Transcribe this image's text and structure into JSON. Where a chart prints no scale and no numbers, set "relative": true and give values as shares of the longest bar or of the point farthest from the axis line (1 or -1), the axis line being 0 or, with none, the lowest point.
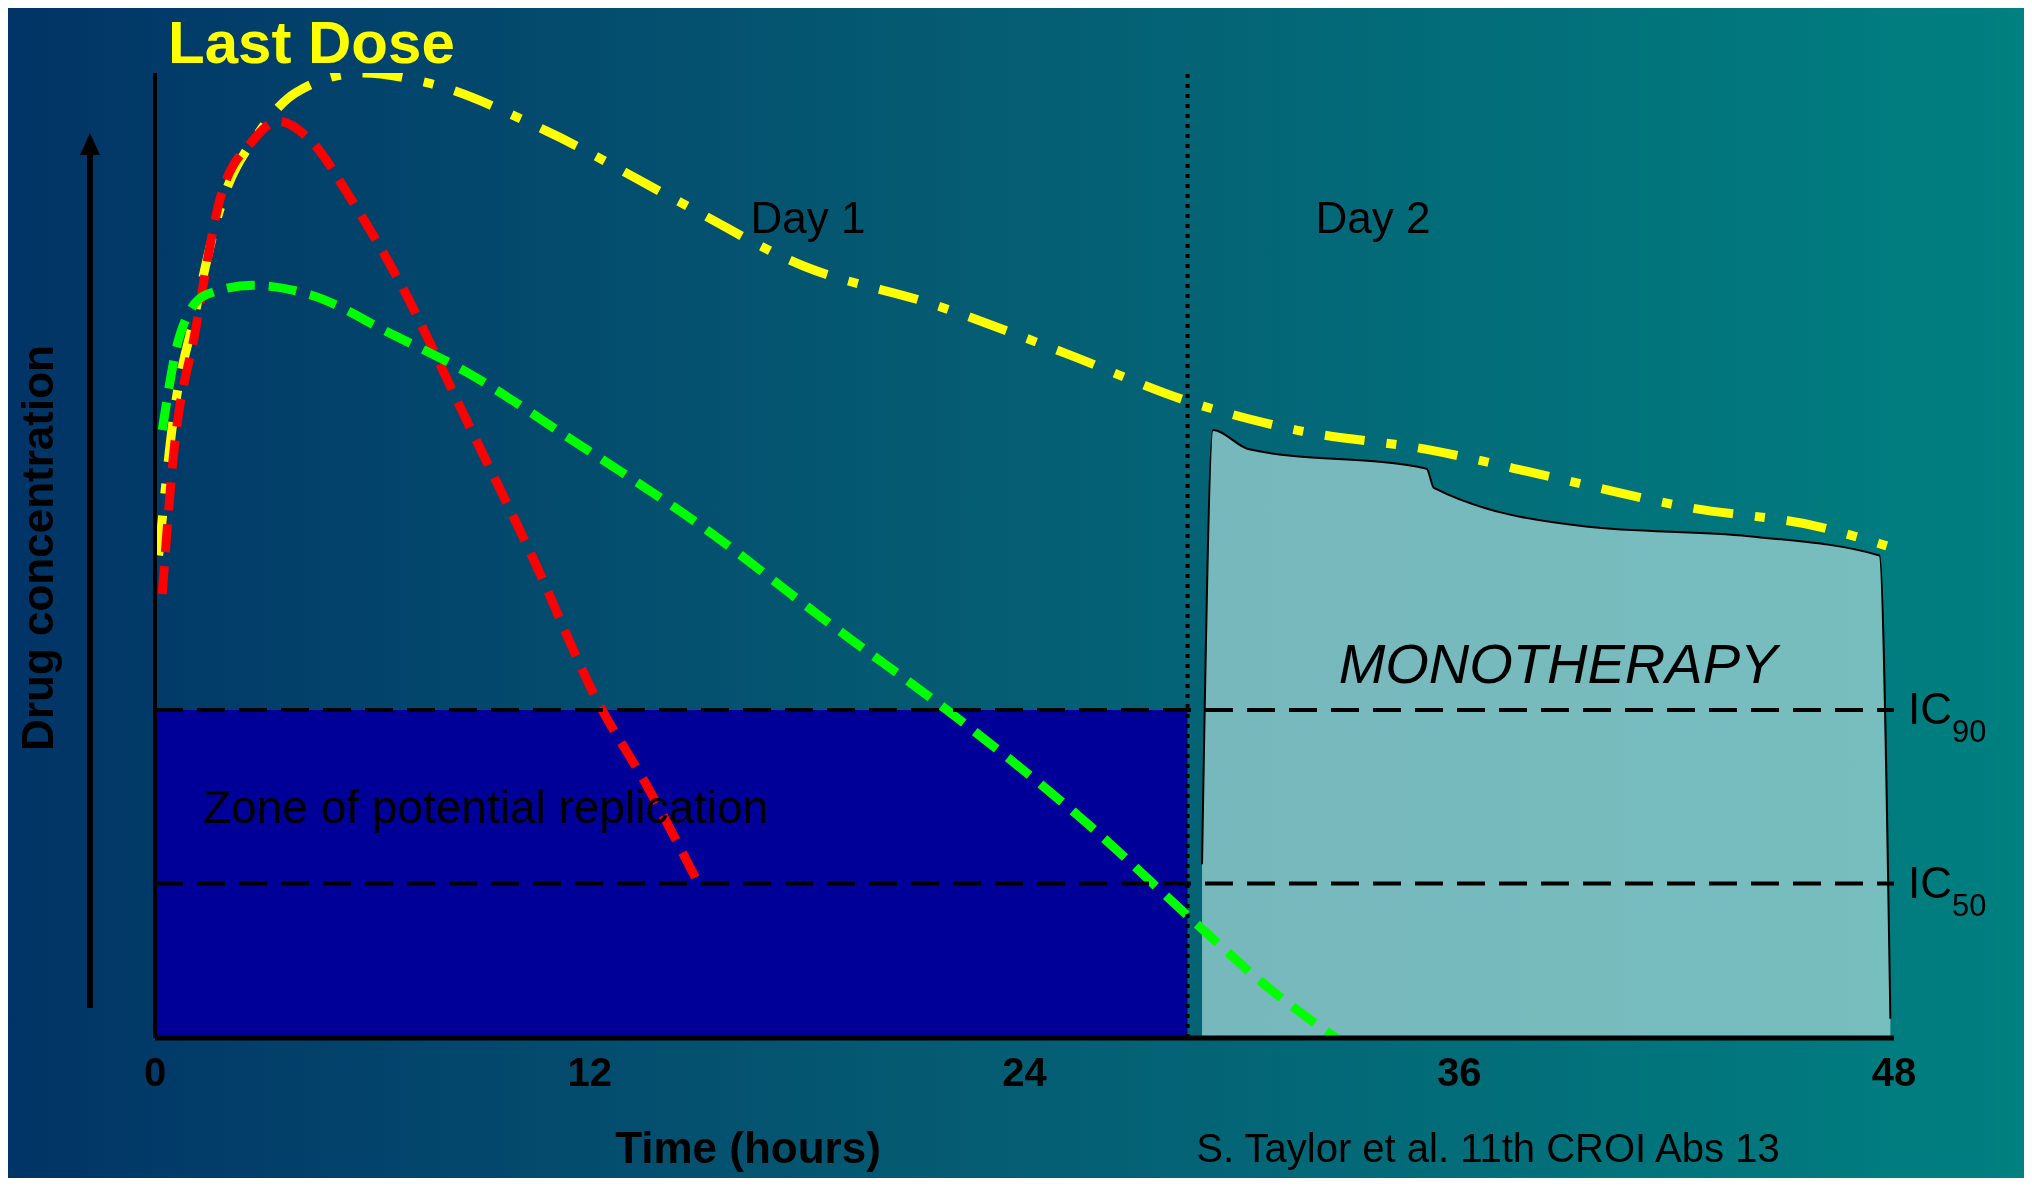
{
  "chart_data": {
    "type": "line",
    "title": "Last Dose",
    "xlabel": "Time (hours)",
    "ylabel": "Drug concentration",
    "relative": true,
    "xlim": [
      0,
      48
    ],
    "xticks": [
      0,
      12,
      24,
      36,
      48
    ],
    "grid": false,
    "legend": false,
    "marker": "none",
    "series": [
      {
        "color": "#ffff00",
        "line_style": "dashdot",
        "x": [
          0.1,
          0.5,
          1.1,
          1.8,
          2.9,
          3.9,
          5.7,
          7.5,
          10.8,
          14.3,
          17.9,
          21.5,
          25.1,
          28.5,
          31.5,
          35.1,
          38.7,
          42.3,
          45.9,
          47.8
        ],
        "values": [
          0.5,
          0.64,
          0.75,
          0.86,
          0.94,
          0.98,
          1,
          0.99,
          0.94,
          0.87,
          0.8,
          0.76,
          0.71,
          0.66,
          0.63,
          0.61,
          0.58,
          0.55,
          0.53,
          0.51
        ]
      },
      {
        "color": "#ff0000",
        "line_style": "dashed",
        "x": [
          0.2,
          0.5,
          1.1,
          1.8,
          2.7,
          3.4,
          4.3,
          5.4,
          6.8,
          8.6,
          10.4,
          12.2,
          13.6,
          15
        ],
        "values": [
          0.46,
          0.6,
          0.73,
          0.87,
          0.93,
          0.95,
          0.93,
          0.87,
          0.78,
          0.64,
          0.5,
          0.35,
          0.26,
          0.16
        ]
      },
      {
        "color": "#00ff00",
        "line_style": "dashed",
        "x": [
          0.2,
          0.7,
          1.4,
          2.7,
          4.3,
          6.5,
          8.6,
          11.5,
          15.1,
          18.6,
          22.2,
          25.8,
          28.7,
          30.8,
          32.6
        ],
        "values": [
          0.63,
          0.73,
          0.77,
          0.78,
          0.77,
          0.73,
          0.69,
          0.62,
          0.53,
          0.43,
          0.33,
          0.22,
          0.12,
          0.05,
          0
        ]
      },
      {
        "type": "area",
        "color": "#9fd4d4",
        "x": [
          28.9,
          29.2,
          30.2,
          35.1,
          35.3,
          39.5,
          44,
          47.6,
          47.9
        ],
        "values": [
          0.18,
          0.63,
          0.61,
          0.59,
          0.57,
          0.53,
          0.52,
          0.5,
          0.02
        ]
      }
    ],
    "ref_lines": [
      {
        "axis": "y",
        "value": 0.34,
        "label": "IC$_{90}$",
        "line_style": "dashed",
        "color": "#000000"
      },
      {
        "axis": "y",
        "value": 0.16,
        "label": "IC$_{50}$",
        "line_style": "dashed",
        "color": "#000000"
      },
      {
        "axis": "x",
        "value": 28.5,
        "line_style": "dotted",
        "color": "#000000"
      }
    ],
    "bands": [
      {
        "axis": "y",
        "from": 0,
        "to": 0.34,
        "label": "Zone of potential replication",
        "color": "#000099"
      }
    ],
    "annotations": [
      "Day 1",
      "Day 2",
      "MONOTHERAPY",
      "S. Taylor et al. 11th CROI  Abs 13"
    ]
  }
}
